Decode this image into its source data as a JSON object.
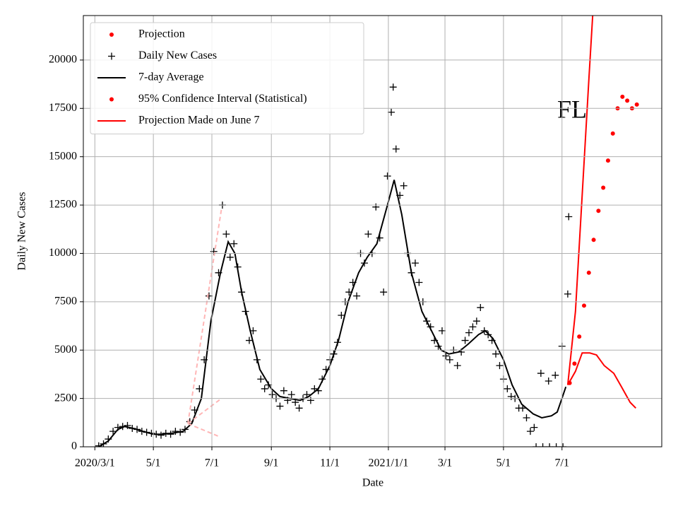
{
  "chart_data": {
    "type": "scatter",
    "x_label": "Date",
    "y_label": "Daily New Cases",
    "annotation": "FL",
    "xlim": [
      "2020-02-18",
      "2021-10-13"
    ],
    "ylim": [
      0,
      22300
    ],
    "xticks": [
      {
        "value": "2020-03-01",
        "label": "2020/3/1"
      },
      {
        "value": "2020-05-01",
        "label": "5/1"
      },
      {
        "value": "2020-07-01",
        "label": "7/1"
      },
      {
        "value": "2020-09-01",
        "label": "9/1"
      },
      {
        "value": "2020-11-01",
        "label": "11/1"
      },
      {
        "value": "2021-01-01",
        "label": "2021/1/1"
      },
      {
        "value": "2021-03-01",
        "label": "3/1"
      },
      {
        "value": "2021-05-01",
        "label": "5/1"
      },
      {
        "value": "2021-07-01",
        "label": "7/1"
      }
    ],
    "yticks": [
      0,
      2500,
      5000,
      7500,
      10000,
      12500,
      15000,
      17500,
      20000
    ],
    "grid": true,
    "legend": "upper left",
    "series": [
      {
        "name": "Projection",
        "color": "#ff0000",
        "marker": "o",
        "x": [
          "2021-07-09",
          "2021-07-14",
          "2021-07-19",
          "2021-07-24",
          "2021-07-29",
          "2021-08-03",
          "2021-08-08",
          "2021-08-13",
          "2021-08-18",
          "2021-08-23",
          "2021-08-28",
          "2021-09-02",
          "2021-09-07",
          "2021-09-12",
          "2021-09-17"
        ],
        "values": [
          3300,
          4300,
          5700,
          7300,
          9000,
          10700,
          12200,
          13400,
          14800,
          16200,
          17500,
          18100,
          17900,
          17500,
          17700
        ]
      },
      {
        "name": "Daily New Cases",
        "color": "#000000",
        "marker": "+",
        "x": [
          "2020-03-05",
          "2020-03-10",
          "2020-03-15",
          "2020-03-20",
          "2020-03-25",
          "2020-03-30",
          "2020-04-04",
          "2020-04-09",
          "2020-04-14",
          "2020-04-19",
          "2020-04-24",
          "2020-04-29",
          "2020-05-04",
          "2020-05-09",
          "2020-05-14",
          "2020-05-19",
          "2020-05-24",
          "2020-05-29",
          "2020-06-03",
          "2020-06-08",
          "2020-06-13",
          "2020-06-18",
          "2020-06-23",
          "2020-06-28",
          "2020-07-03",
          "2020-07-08",
          "2020-07-12",
          "2020-07-16",
          "2020-07-20",
          "2020-07-24",
          "2020-07-28",
          "2020-08-01",
          "2020-08-05",
          "2020-08-09",
          "2020-08-13",
          "2020-08-17",
          "2020-08-21",
          "2020-08-25",
          "2020-08-29",
          "2020-09-02",
          "2020-09-06",
          "2020-09-10",
          "2020-09-14",
          "2020-09-18",
          "2020-09-22",
          "2020-09-26",
          "2020-09-30",
          "2020-10-04",
          "2020-10-08",
          "2020-10-12",
          "2020-10-16",
          "2020-10-20",
          "2020-10-24",
          "2020-10-28",
          "2020-11-01",
          "2020-11-05",
          "2020-11-09",
          "2020-11-13",
          "2020-11-17",
          "2020-11-21",
          "2020-11-25",
          "2020-11-29",
          "2020-12-03",
          "2020-12-07",
          "2020-12-11",
          "2020-12-15",
          "2020-12-19",
          "2020-12-23",
          "2020-12-27",
          "2020-12-31",
          "2021-01-04",
          "2021-01-06",
          "2021-01-09",
          "2021-01-13",
          "2021-01-17",
          "2021-01-21",
          "2021-01-25",
          "2021-01-29",
          "2021-02-02",
          "2021-02-06",
          "2021-02-10",
          "2021-02-14",
          "2021-02-18",
          "2021-02-22",
          "2021-02-26",
          "2021-03-02",
          "2021-03-06",
          "2021-03-10",
          "2021-03-14",
          "2021-03-18",
          "2021-03-22",
          "2021-03-26",
          "2021-03-30",
          "2021-04-03",
          "2021-04-07",
          "2021-04-11",
          "2021-04-15",
          "2021-04-19",
          "2021-04-23",
          "2021-04-27",
          "2021-05-01",
          "2021-05-05",
          "2021-05-09",
          "2021-05-13",
          "2021-05-17",
          "2021-05-21",
          "2021-05-25",
          "2021-05-29",
          "2021-06-02",
          "2021-06-04",
          "2021-06-09",
          "2021-06-11",
          "2021-06-17",
          "2021-06-18",
          "2021-06-24",
          "2021-06-25",
          "2021-07-01",
          "2021-07-02",
          "2021-07-07",
          "2021-07-08"
        ],
        "values": [
          50,
          150,
          400,
          800,
          1000,
          1050,
          1100,
          950,
          900,
          800,
          750,
          700,
          650,
          600,
          700,
          650,
          800,
          750,
          900,
          1300,
          1900,
          3000,
          4500,
          7800,
          10100,
          9000,
          12500,
          11000,
          9800,
          10500,
          9300,
          8000,
          7000,
          5500,
          6000,
          4500,
          3500,
          3000,
          3200,
          2700,
          2500,
          2100,
          2900,
          2400,
          2700,
          2300,
          2000,
          2500,
          2700,
          2400,
          3000,
          2900,
          3500,
          4000,
          4500,
          4800,
          5400,
          6800,
          7500,
          8000,
          8500,
          7800,
          10000,
          9500,
          11000,
          10000,
          12400,
          10800,
          8000,
          14000,
          17300,
          18600,
          15400,
          13000,
          13500,
          10000,
          9000,
          9500,
          8500,
          7500,
          6500,
          6200,
          5500,
          5200,
          6000,
          4700,
          4500,
          5000,
          4200,
          4900,
          5500,
          5900,
          6200,
          6500,
          7200,
          6000,
          5800,
          5500,
          4800,
          4200,
          3500,
          3000,
          2600,
          2500,
          2000,
          2000,
          1500,
          800,
          1000,
          0,
          3800,
          0,
          3400,
          0,
          3700,
          0,
          5200,
          0,
          7900,
          11900
        ]
      },
      {
        "name": "7-day Average",
        "color": "#000000",
        "linestyle": "-",
        "x": [
          "2020-03-05",
          "2020-03-15",
          "2020-03-25",
          "2020-04-01",
          "2020-04-10",
          "2020-04-20",
          "2020-05-01",
          "2020-05-10",
          "2020-05-20",
          "2020-06-01",
          "2020-06-10",
          "2020-06-20",
          "2020-06-30",
          "2020-07-10",
          "2020-07-18",
          "2020-07-25",
          "2020-08-01",
          "2020-08-10",
          "2020-08-20",
          "2020-09-01",
          "2020-09-10",
          "2020-09-20",
          "2020-10-01",
          "2020-10-10",
          "2020-10-20",
          "2020-11-01",
          "2020-11-10",
          "2020-11-20",
          "2020-12-01",
          "2020-12-10",
          "2020-12-20",
          "2020-12-31",
          "2021-01-07",
          "2021-01-15",
          "2021-01-25",
          "2021-02-05",
          "2021-02-15",
          "2021-02-25",
          "2021-03-05",
          "2021-03-15",
          "2021-03-25",
          "2021-04-05",
          "2021-04-12",
          "2021-04-20",
          "2021-05-01",
          "2021-05-10",
          "2021-05-20",
          "2021-06-01",
          "2021-06-10",
          "2021-06-20",
          "2021-06-26",
          "2021-07-01",
          "2021-07-05"
        ],
        "values": [
          0,
          300,
          900,
          1050,
          950,
          800,
          650,
          650,
          700,
          800,
          1200,
          2500,
          6500,
          9000,
          10600,
          10000,
          8000,
          6000,
          4000,
          3000,
          2600,
          2500,
          2400,
          2600,
          3000,
          4200,
          5500,
          7500,
          9000,
          9800,
          10500,
          12500,
          13800,
          12000,
          9000,
          7000,
          6000,
          5000,
          4800,
          4900,
          5300,
          5800,
          6000,
          5600,
          4500,
          3200,
          2200,
          1700,
          1500,
          1600,
          1800,
          2500,
          3100
        ]
      },
      {
        "name": "95% Confidence Interval (Statistical)",
        "color": "#ff0000",
        "marker": "o",
        "x": [],
        "values": []
      },
      {
        "name": "Projection Made on June 7",
        "color": "#ff0000",
        "linestyle": "-",
        "x": [
          "2021-07-07",
          "2021-07-15",
          "2021-07-22",
          "2021-07-29",
          "2021-08-02",
          null,
          "2021-07-07",
          "2021-07-15",
          "2021-07-22",
          "2021-07-30",
          "2021-08-06",
          "2021-08-14",
          "2021-08-24",
          "2021-09-01",
          "2021-09-10",
          "2021-09-16"
        ],
        "values": [
          3200,
          7000,
          13000,
          19000,
          22300,
          null,
          3200,
          3900,
          4850,
          4850,
          4750,
          4200,
          3800,
          3100,
          2300,
          2000
        ]
      },
      {
        "color": "#ffb6b6",
        "linestyle": "--",
        "x": [
          "2020-06-06",
          "2020-07-11",
          null,
          "2020-06-06",
          "2020-07-11",
          null,
          "2020-06-06",
          "2020-07-10"
        ],
        "values": [
          1200,
          12300,
          null,
          1200,
          2500,
          null,
          1200,
          500
        ]
      }
    ]
  }
}
